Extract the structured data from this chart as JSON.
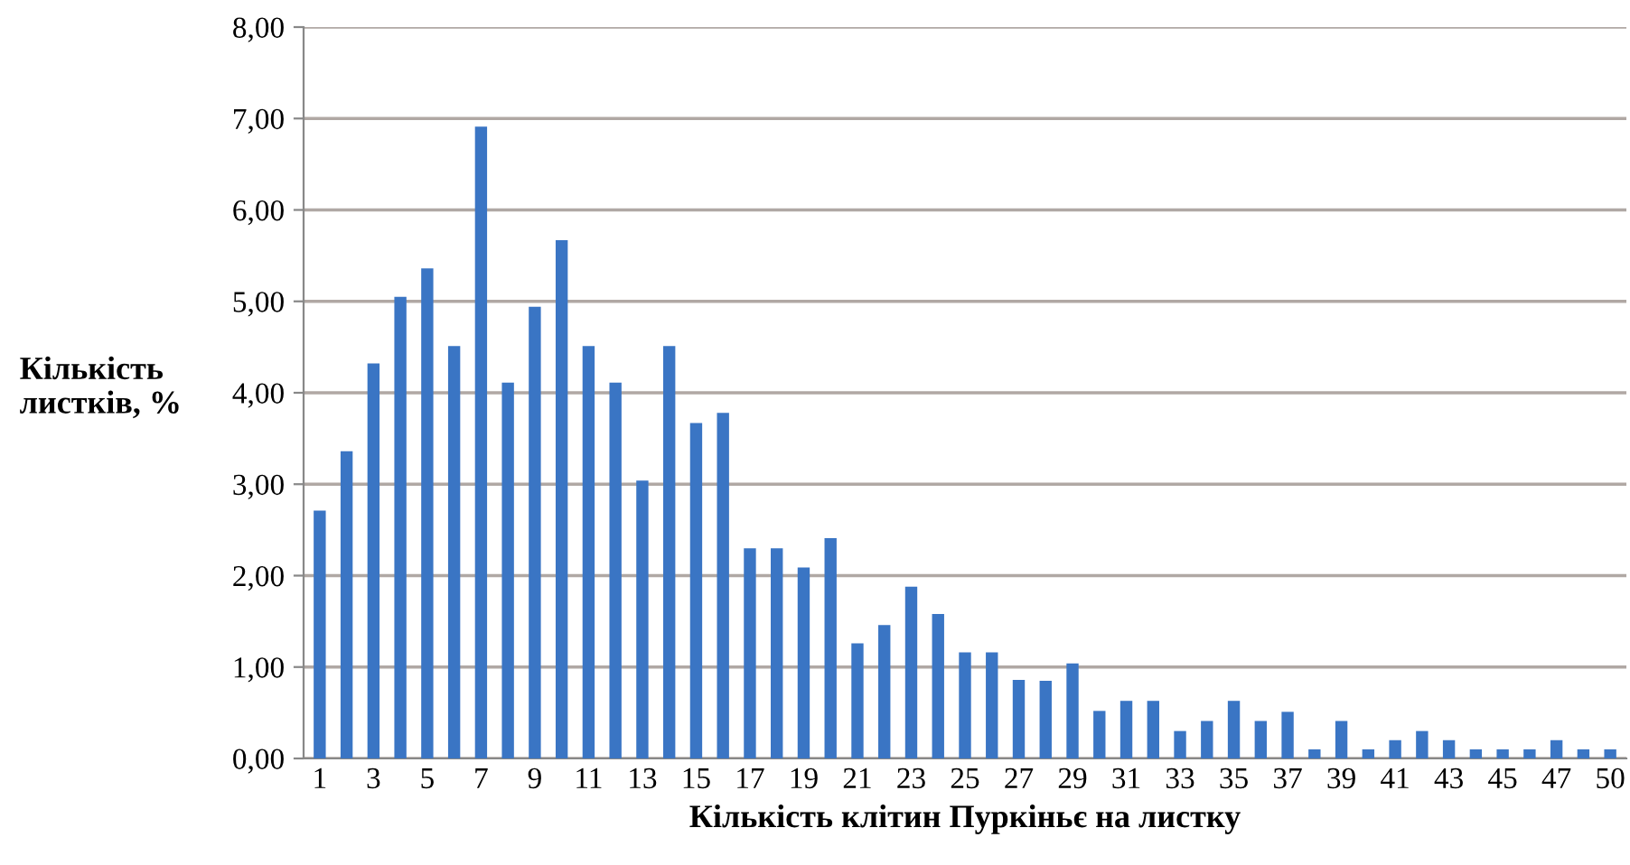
{
  "chart_data": {
    "type": "bar",
    "xlabel": "Кількість клітин Пуркіньє на листку",
    "ylabel": "Кількість\nлистків, %",
    "categories": [
      "1",
      null,
      "3",
      null,
      "5",
      null,
      "7",
      null,
      "9",
      null,
      "11",
      null,
      "13",
      null,
      "15",
      null,
      "17",
      null,
      "19",
      null,
      "21",
      null,
      "23",
      null,
      "25",
      null,
      "27",
      null,
      "29",
      null,
      "31",
      null,
      "33",
      null,
      "35",
      null,
      "37",
      null,
      "39",
      null,
      "41",
      null,
      "43",
      null,
      "45",
      null,
      "47",
      null,
      "50"
    ],
    "values": [
      2.71,
      3.36,
      4.32,
      5.05,
      5.36,
      4.51,
      6.91,
      4.11,
      4.94,
      5.67,
      4.51,
      4.11,
      3.04,
      4.51,
      3.67,
      3.78,
      2.3,
      2.3,
      2.09,
      2.41,
      1.26,
      1.46,
      1.88,
      1.58,
      1.16,
      1.16,
      0.86,
      0.85,
      1.04,
      0.52,
      0.63,
      0.63,
      0.3,
      0.41,
      0.63,
      0.41,
      0.51,
      0.1,
      0.41,
      0.1,
      0.2,
      0.3,
      0.2,
      0.1,
      0.1,
      0.1,
      0.2,
      0.1,
      0.1
    ],
    "color": "#3a75c4",
    "ylim": [
      0,
      8
    ],
    "yticks": [
      {
        "value": 0,
        "label": "0,00"
      },
      {
        "value": 1,
        "label": "1,00"
      },
      {
        "value": 2,
        "label": "2,00"
      },
      {
        "value": 3,
        "label": "3,00"
      },
      {
        "value": 4,
        "label": "4,00"
      },
      {
        "value": 5,
        "label": "5,00"
      },
      {
        "value": 6,
        "label": "6,00"
      },
      {
        "value": 7,
        "label": "7,00"
      },
      {
        "value": 8,
        "label": "8,00"
      }
    ],
    "grid": "y"
  }
}
